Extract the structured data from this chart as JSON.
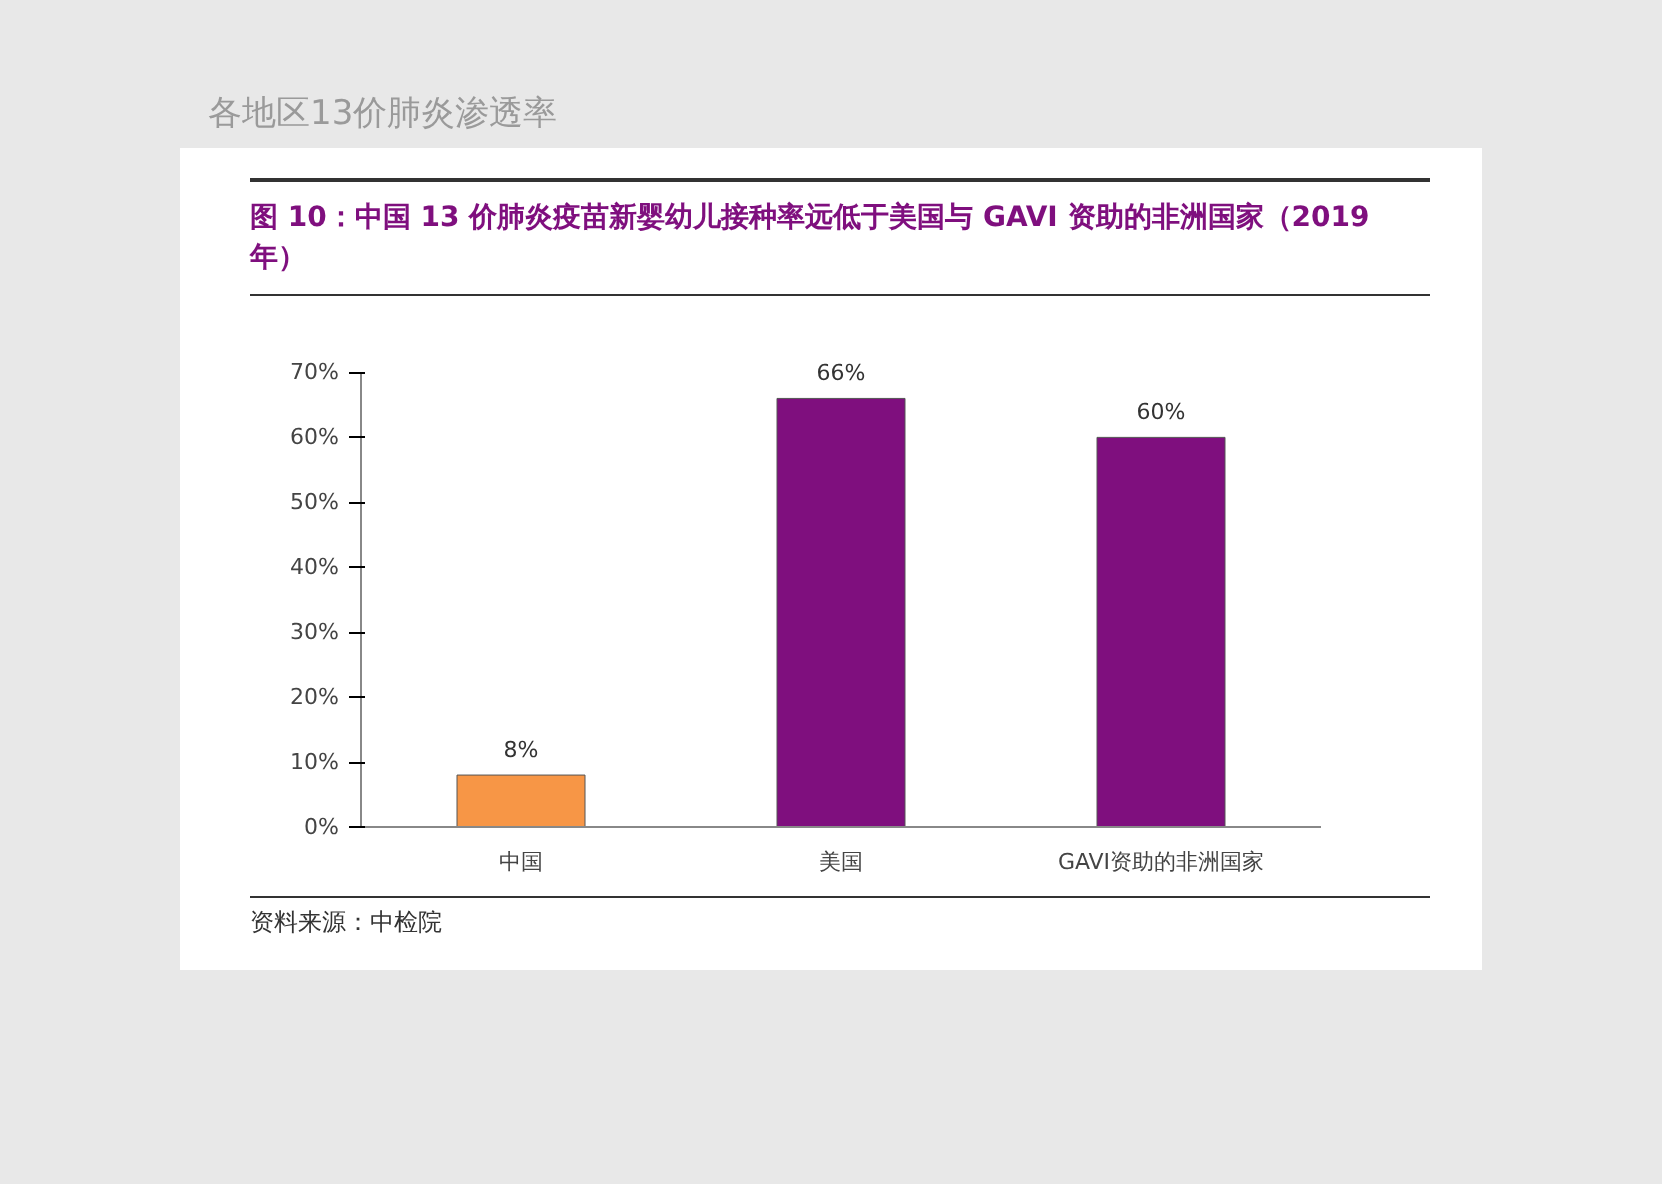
{
  "chart_data": {
    "type": "bar",
    "subtitle": "各地区13价肺炎渗透率",
    "title": "图 10：中国 13 价肺炎疫苗新婴幼儿接种率远低于美国与 GAVI 资助的非洲国家（2019 年）",
    "categories": [
      "中国",
      "美国",
      "GAVI资助的非洲国家"
    ],
    "values": [
      8,
      66,
      60
    ],
    "colors": [
      "#f79646",
      "#7f0f7e",
      "#7f0f7e"
    ],
    "value_labels": [
      "8%",
      "66%",
      "60%"
    ],
    "ylim": [
      0,
      70
    ],
    "yticks": [
      {
        "value": 0,
        "label": "0%"
      },
      {
        "value": 10,
        "label": "10%"
      },
      {
        "value": 20,
        "label": "20%"
      },
      {
        "value": 30,
        "label": "30%"
      },
      {
        "value": 40,
        "label": "40%"
      },
      {
        "value": 50,
        "label": "50%"
      },
      {
        "value": 60,
        "label": "60%"
      },
      {
        "value": 70,
        "label": "70%"
      }
    ],
    "grid": false,
    "annotations": [
      "资料来源：中检院"
    ]
  }
}
